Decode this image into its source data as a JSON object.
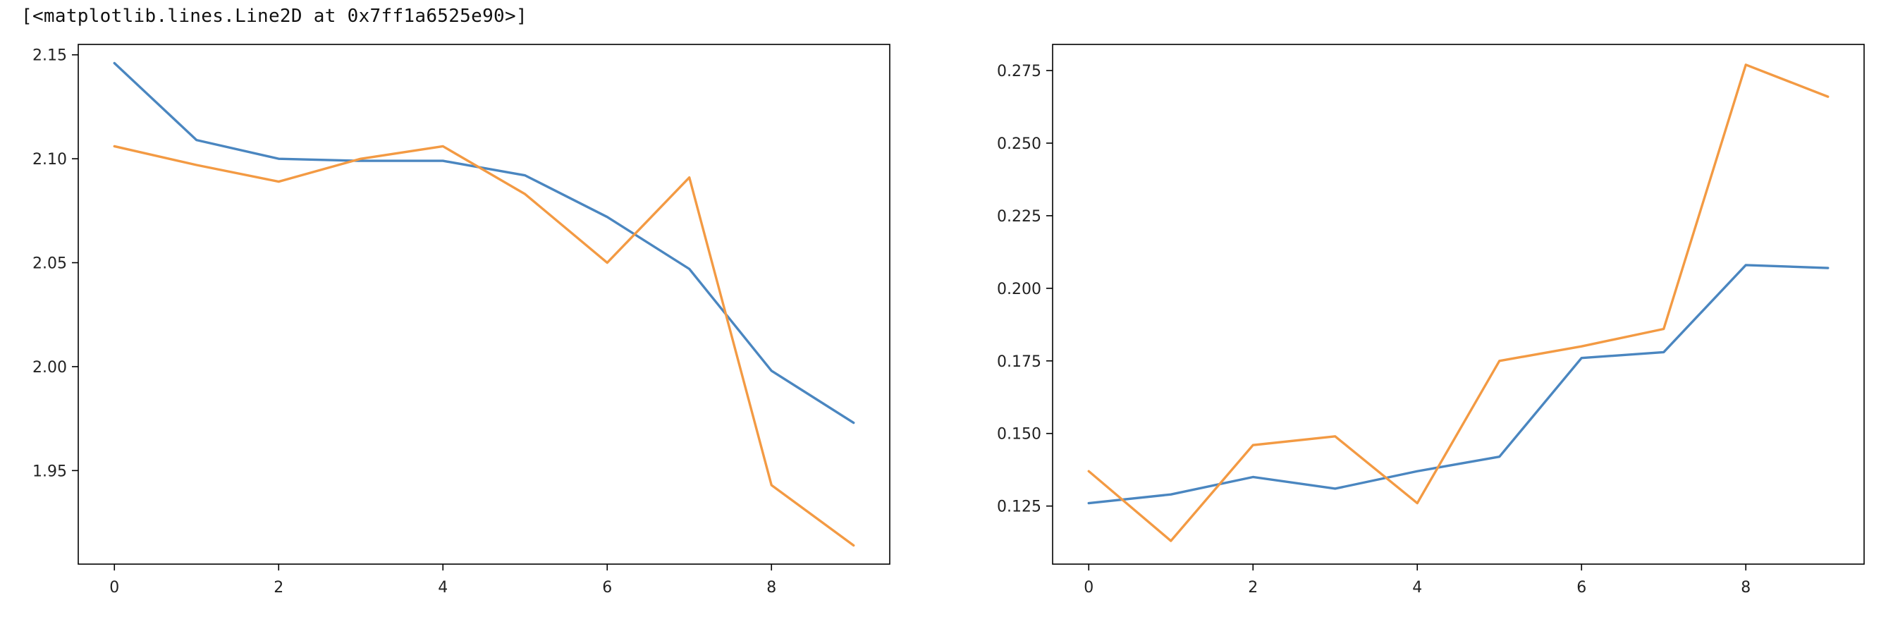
{
  "output_repr": "[<matplotlib.lines.Line2D at 0x7ff1a6525e90>]",
  "colors": {
    "series1": "#4a86c0",
    "series2": "#f39a43"
  },
  "chart_data": [
    {
      "type": "line",
      "x": [
        0,
        1,
        2,
        3,
        4,
        5,
        6,
        7,
        8,
        9
      ],
      "series": [
        {
          "values": [
            2.146,
            2.109,
            2.1,
            2.099,
            2.099,
            2.092,
            2.072,
            2.047,
            1.998,
            1.973
          ]
        },
        {
          "values": [
            2.106,
            2.097,
            2.089,
            2.1,
            2.106,
            2.083,
            2.05,
            2.091,
            1.943,
            1.914
          ]
        }
      ],
      "xlim": [
        -0.44,
        9.44
      ],
      "ylim": [
        1.905,
        2.155
      ],
      "xticks": [
        0,
        2,
        4,
        6,
        8
      ],
      "xtick_labels": [
        "0",
        "2",
        "4",
        "6",
        "8"
      ],
      "yticks": [
        1.95,
        2.0,
        2.05,
        2.1,
        2.15
      ],
      "ytick_labels": [
        "1.95",
        "2.00",
        "2.05",
        "2.10",
        "2.15"
      ],
      "grid": false,
      "title": "",
      "xlabel": "",
      "ylabel": ""
    },
    {
      "type": "line",
      "x": [
        0,
        1,
        2,
        3,
        4,
        5,
        6,
        7,
        8,
        9
      ],
      "series": [
        {
          "values": [
            0.126,
            0.129,
            0.135,
            0.131,
            0.137,
            0.142,
            0.176,
            0.178,
            0.208,
            0.207
          ]
        },
        {
          "values": [
            0.137,
            0.113,
            0.146,
            0.149,
            0.126,
            0.175,
            0.18,
            0.186,
            0.277,
            0.266
          ]
        }
      ],
      "xlim": [
        -0.44,
        9.44
      ],
      "ylim": [
        0.105,
        0.284
      ],
      "xticks": [
        0,
        2,
        4,
        6,
        8
      ],
      "xtick_labels": [
        "0",
        "2",
        "4",
        "6",
        "8"
      ],
      "yticks": [
        0.125,
        0.15,
        0.175,
        0.2,
        0.225,
        0.25,
        0.275
      ],
      "ytick_labels": [
        "0.125",
        "0.150",
        "0.175",
        "0.200",
        "0.225",
        "0.250",
        "0.275"
      ],
      "grid": false,
      "title": "",
      "xlabel": "",
      "ylabel": ""
    }
  ]
}
